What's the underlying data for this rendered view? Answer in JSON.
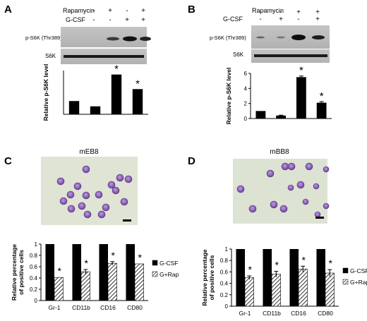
{
  "panels": {
    "A": {
      "letter": "A",
      "treatments": {
        "rapamycin_label": "Rapamycin",
        "gcsf_label": "G-CSF",
        "rapamycin_signs": [
          "-",
          "+",
          "-",
          "+"
        ],
        "gcsf_signs": [
          "-",
          "-",
          "+",
          "+"
        ]
      },
      "blot_labels": [
        "p-S6K (Thr389)",
        "S6K"
      ]
    },
    "B": {
      "letter": "B",
      "treatments": {
        "rapamycin_label": "Rapamycin",
        "gcsf_label": "G-CSF",
        "rapamycin_signs": [
          "-",
          "+",
          "-",
          "+"
        ],
        "gcsf_signs": [
          "-",
          "-",
          "+",
          "+"
        ]
      },
      "blot_labels": [
        "p-S6K (Thr389)",
        "S6K"
      ]
    },
    "C": {
      "letter": "C",
      "image_title": "mEB8"
    },
    "D": {
      "letter": "D",
      "image_title": "mBB8"
    }
  },
  "chart_data": [
    {
      "panel": "A",
      "type": "bar",
      "categories": [
        "-/-",
        "+/-",
        "-/+",
        "+/+"
      ],
      "values": [
        1.0,
        0.6,
        3.0,
        1.9
      ],
      "annotations": [
        "",
        "",
        "*",
        "*"
      ],
      "ylabel": "Relative p-S6K level",
      "ylim": [
        0,
        3.3
      ],
      "yticks": [],
      "grid": false,
      "color": "#000000"
    },
    {
      "panel": "B",
      "type": "bar",
      "categories": [
        "-/-",
        "+/-",
        "-/+",
        "+/+"
      ],
      "values": [
        1.0,
        0.4,
        5.5,
        2.1
      ],
      "errors": [
        0,
        0.05,
        0.15,
        0.15
      ],
      "annotations": [
        "",
        "",
        "*",
        "*"
      ],
      "ylabel": "Relative p-S6K level",
      "ylim": [
        0,
        6
      ],
      "yticks": [
        "0",
        "2",
        "4",
        "6"
      ],
      "grid": false,
      "color": "#000000"
    },
    {
      "panel": "C",
      "type": "bar",
      "categories": [
        "Gr-1",
        "CD11b",
        "CD16",
        "CD80"
      ],
      "series": [
        {
          "name": "G-CSF",
          "values": [
            1,
            1,
            1,
            1
          ],
          "fill": "solid"
        },
        {
          "name": "G+Rap",
          "values": [
            0.41,
            0.51,
            0.66,
            0.65
          ],
          "errors": [
            0.0,
            0.04,
            0.03,
            0.0
          ],
          "fill": "hatch"
        }
      ],
      "annotations": [
        "*",
        "*",
        "*",
        "*"
      ],
      "ylabel": "Relative percentage of positive cells",
      "ylim": [
        0,
        1
      ],
      "yticks": [
        "0",
        "0.2",
        "0.4",
        "0.6",
        "0.8",
        "1"
      ],
      "legend_position": "right",
      "grid": false
    },
    {
      "panel": "D",
      "type": "bar",
      "categories": [
        "Gr-1",
        "CD11b",
        "CD16",
        "CD80"
      ],
      "series": [
        {
          "name": "G-CSF",
          "values": [
            1,
            1,
            1,
            1
          ],
          "fill": "solid"
        },
        {
          "name": "G+Rap",
          "values": [
            0.5,
            0.56,
            0.65,
            0.58
          ],
          "errors": [
            0.03,
            0.05,
            0.05,
            0.06
          ],
          "fill": "hatch"
        }
      ],
      "annotations": [
        "*",
        "*",
        "*",
        "*"
      ],
      "ylabel": "Relative percentage of positive cells",
      "ylim": [
        0,
        1
      ],
      "yticks": [
        "0",
        "0.2",
        "0.4",
        "0.6",
        "0.8",
        "1"
      ],
      "legend_position": "right",
      "grid": false
    }
  ]
}
